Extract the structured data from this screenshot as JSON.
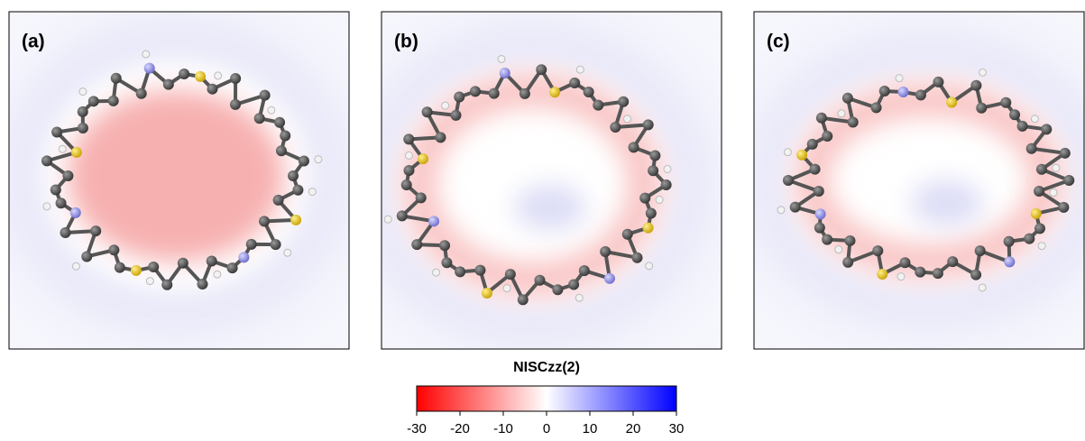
{
  "panels": [
    {
      "label": "(a)"
    },
    {
      "label": "(b)"
    },
    {
      "label": "(c)"
    }
  ],
  "colorbar": {
    "title": "NISCzz(2)",
    "lim": [
      -30,
      30
    ],
    "ticks": [
      -30,
      -20,
      -10,
      0,
      10,
      20,
      30
    ],
    "colors": [
      "#ff0000",
      "#ffffff",
      "#0000ff"
    ]
  }
}
